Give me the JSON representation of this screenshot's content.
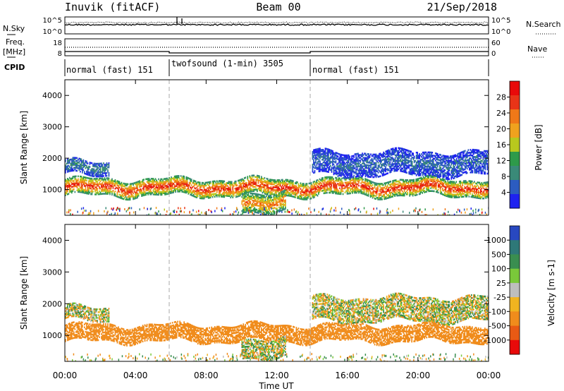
{
  "header": {
    "station": "Inuvik (fitACF)",
    "beam": "Beam 00",
    "date": "21/Sep/2018"
  },
  "top_panels": {
    "nsky_label": "N.Sky",
    "nsky_ticks": [
      "10^5",
      "10^0"
    ],
    "nsearch_label": "N.Search",
    "nsearch_ticks": [
      "10^5",
      "10^0"
    ],
    "freq_label_1": "Freq.",
    "freq_label_2": "[MHz]",
    "freq_ticks": [
      "18",
      "8"
    ],
    "nave_label": "Nave",
    "nave_ticks": [
      "60",
      "0"
    ],
    "cpid_label": "CPID",
    "cpid_segments": [
      {
        "label": "normal (fast) 151",
        "start_h": 0,
        "end_h": 6
      },
      {
        "label": "twofsound (1-min) 3505",
        "start_h": 6,
        "end_h": 14
      },
      {
        "label": "normal (fast) 151",
        "start_h": 14,
        "end_h": 24
      }
    ]
  },
  "power_panel": {
    "ylabel": "Slant Range [km]",
    "yticks": [
      "1000",
      "2000",
      "3000",
      "4000"
    ],
    "colorbar_label": "Power [dB]",
    "colorbar_ticks": [
      "4",
      "8",
      "12",
      "16",
      "20",
      "24",
      "28"
    ],
    "colors": [
      "#1e22f0",
      "#2c5cc0",
      "#3a8a78",
      "#2e9a4a",
      "#b8c81e",
      "#f0a21e",
      "#f07818",
      "#e83418",
      "#e80a0a"
    ]
  },
  "velocity_panel": {
    "ylabel": "Slant Range [km]",
    "yticks": [
      "1000",
      "2000",
      "3000",
      "4000"
    ],
    "colorbar_label": "Velocity [m s-1]",
    "colorbar_ticks": [
      "1000",
      "500",
      "100",
      "25",
      "-25",
      "-100",
      "-500",
      "-1000"
    ],
    "colors": [
      "#2848c0",
      "#2e7878",
      "#3a8e50",
      "#7ac83a",
      "#bebebe",
      "#f0b420",
      "#f08c1c",
      "#e85a14",
      "#e80a0a"
    ]
  },
  "x_axis": {
    "label": "Time UT",
    "ticks": [
      "00:00",
      "04:00",
      "08:00",
      "12:00",
      "16:00",
      "20:00",
      "00:00"
    ]
  },
  "chart_data": {
    "type": "heatmap",
    "title": "Inuvik (fitACF) Beam 00 21/Sep/2018",
    "xlabel": "Time UT",
    "ylabel": "Slant Range [km]",
    "xlim_hours": [
      0,
      24
    ],
    "ylim_km": [
      180,
      4500
    ],
    "mode_change_times_h": [
      6,
      14
    ],
    "power_scale_db": [
      0,
      32
    ],
    "velocity_scale_ms": [
      -1000,
      1000
    ],
    "scatter_bands": [
      {
        "name": "main band",
        "start_h": 0,
        "end_h": 24,
        "range_km": [
          800,
          1300
        ],
        "power_db": 26,
        "velocity_ms": -300
      },
      {
        "name": "upper band",
        "start_h": 0,
        "end_h": 2.5,
        "range_km": [
          1450,
          1900
        ],
        "power_db": 8,
        "velocity_ms": 10
      },
      {
        "name": "upper band",
        "start_h": 14,
        "end_h": 24,
        "range_km": [
          1450,
          2200
        ],
        "power_db": 6,
        "velocity_ms": 10
      },
      {
        "name": "near range patch",
        "start_h": 10,
        "end_h": 12.5,
        "range_km": [
          300,
          900
        ],
        "power_db": 22,
        "velocity_ms": 10
      }
    ]
  }
}
